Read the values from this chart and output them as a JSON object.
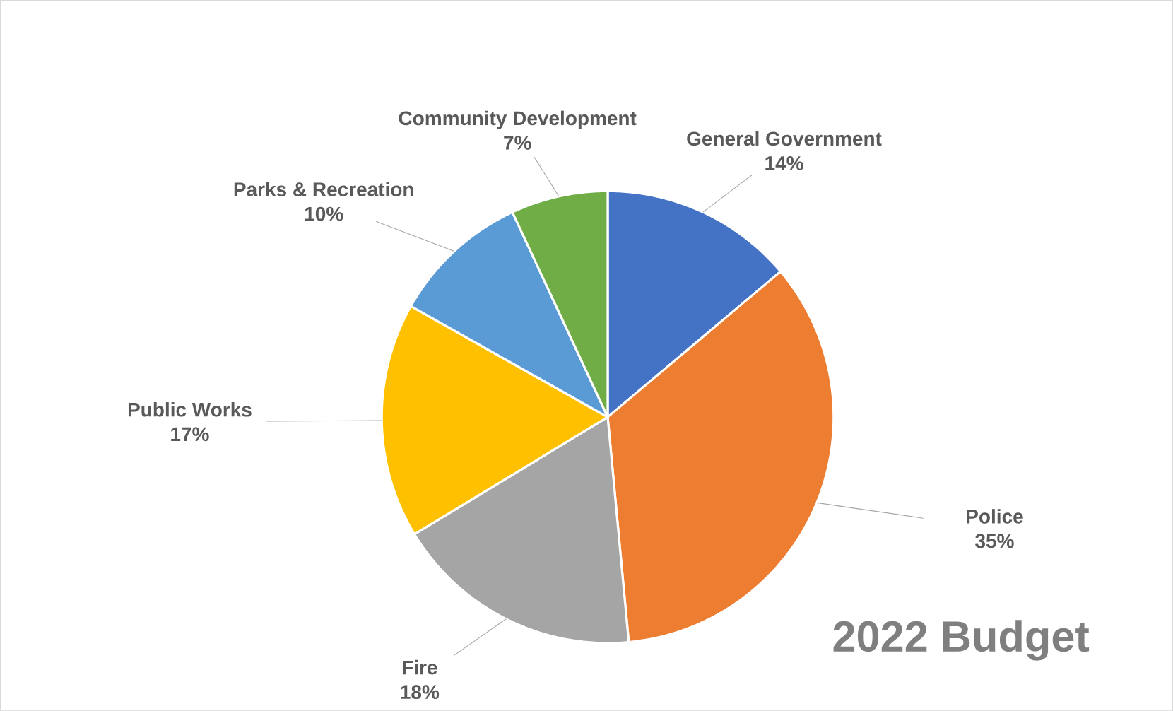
{
  "chart_data": {
    "type": "pie",
    "title": "2022 Budget",
    "categories": [
      "General Government",
      "Police",
      "Fire",
      "Public Works",
      "Parks & Recreation",
      "Community Development"
    ],
    "values": [
      14,
      35,
      18,
      17,
      10,
      7
    ],
    "value_labels": [
      "14%",
      "35%",
      "18%",
      "17%",
      "10%",
      "7%"
    ],
    "colors": [
      "#4472c4",
      "#ed7d31",
      "#a5a5a5",
      "#ffc000",
      "#5b9bd5",
      "#70ad47"
    ]
  }
}
